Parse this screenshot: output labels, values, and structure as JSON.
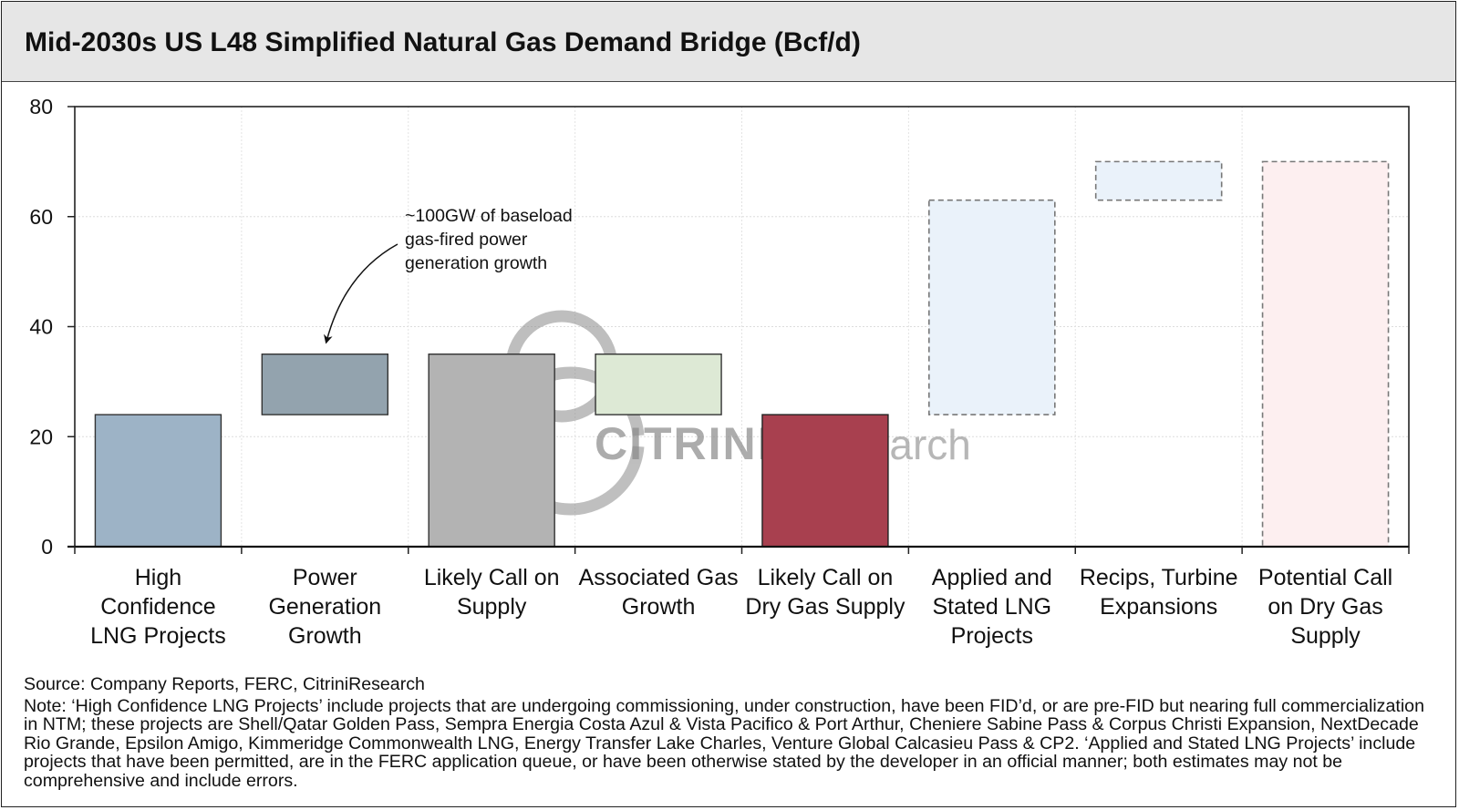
{
  "chart_data": {
    "type": "bar",
    "subtype": "waterfall",
    "title": "Mid-2030s US L48 Simplified Natural Gas Demand Bridge (Bcf/d)",
    "xlabel": "",
    "ylabel": "",
    "ylim": [
      0,
      80
    ],
    "yticks": [
      0,
      20,
      40,
      60,
      80
    ],
    "grid": true,
    "categories": [
      [
        "High",
        "Confidence",
        "LNG Projects"
      ],
      [
        "Power",
        "Generation",
        "Growth"
      ],
      [
        "Likely Call on",
        "Supply"
      ],
      [
        "Associated Gas",
        "Growth"
      ],
      [
        "Likely Call on",
        "Dry Gas Supply"
      ],
      [
        "Applied and",
        "Stated LNG",
        "Projects"
      ],
      [
        "Recips, Turbine",
        "Expansions"
      ],
      [
        "Potential Call",
        "on Dry Gas",
        "Supply"
      ]
    ],
    "bars": [
      {
        "base": 0,
        "top": 24,
        "fill": "#9db3c6",
        "stroke": "#333333",
        "dashed": false
      },
      {
        "base": 24,
        "top": 35,
        "fill": "#93a3ae",
        "stroke": "#333333",
        "dashed": false
      },
      {
        "base": 0,
        "top": 35,
        "fill": "#b3b3b3",
        "stroke": "#333333",
        "dashed": false
      },
      {
        "base": 24,
        "top": 35,
        "fill": "#dde9d5",
        "stroke": "#333333",
        "dashed": false
      },
      {
        "base": 0,
        "top": 24,
        "fill": "#a8404f",
        "stroke": "#222222",
        "dashed": false
      },
      {
        "base": 24,
        "top": 63,
        "fill": "#eaf2fa",
        "stroke": "#777777",
        "dashed": true
      },
      {
        "base": 63,
        "top": 70,
        "fill": "#eaf2fa",
        "stroke": "#777777",
        "dashed": true
      },
      {
        "base": 0,
        "top": 70,
        "fill": "#fdeff0",
        "stroke": "#777777",
        "dashed": true
      }
    ],
    "annotation": {
      "lines": [
        "~100GW of baseload",
        "gas-fired power",
        "generation growth"
      ],
      "target_category": 1
    }
  },
  "watermark": {
    "bold": "CITRINI",
    "light": "Research"
  },
  "footer": {
    "source": "Source: Company Reports, FERC, CitriniResearch",
    "note": "Note: ‘High Confidence LNG Projects’ include projects that are undergoing commissioning, under construction, have been FID’d, or are pre-FID but nearing full commercialization in NTM; these projects are Shell/Qatar Golden Pass, Sempra Energia Costa Azul & Vista Pacifico & Port Arthur, Cheniere Sabine Pass & Corpus Christi Expansion, NextDecade Rio Grande, Epsilon Amigo, Kimmeridge Commonwealth LNG, Energy Transfer Lake Charles, Venture Global Calcasieu Pass & CP2. ‘Applied and Stated LNG Projects’ include projects that have been permitted, are in the FERC application queue, or have been otherwise stated by the developer in an official manner; both estimates may not be comprehensive and include errors."
  }
}
